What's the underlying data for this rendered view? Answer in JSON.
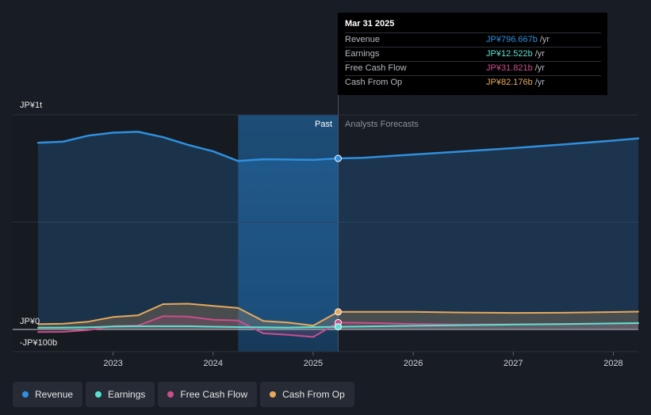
{
  "chart_data": {
    "type": "line",
    "y_axis_labels": {
      "top": "JP¥1t",
      "zero": "JP¥0",
      "bottom": "-JP¥100b"
    },
    "ylim": [
      -100,
      1000
    ],
    "x_ticks": [
      "2023",
      "2024",
      "2025",
      "2026",
      "2027",
      "2028"
    ],
    "xlim": [
      2022.25,
      2028.25
    ],
    "divider_x": 2025.25,
    "past_shade_start": 2024.25,
    "region_labels": {
      "past": "Past",
      "forecast": "Analysts Forecasts"
    },
    "series": [
      {
        "name": "Revenue",
        "color": "#2f8fde",
        "x": [
          2022.25,
          2022.5,
          2022.75,
          2023.0,
          2023.25,
          2023.5,
          2023.75,
          2024.0,
          2024.25,
          2024.5,
          2024.75,
          2025.0,
          2025.25,
          2025.5,
          2026.0,
          2026.5,
          2027.0,
          2027.5,
          2028.0,
          2028.25
        ],
        "y": [
          870,
          875,
          903,
          917,
          921,
          896,
          860,
          830,
          785,
          793,
          792,
          790,
          797,
          800,
          815,
          830,
          845,
          862,
          880,
          890
        ]
      },
      {
        "name": "Earnings",
        "color": "#5ce0d0",
        "x": [
          2022.25,
          2022.5,
          2022.75,
          2023.0,
          2023.25,
          2023.5,
          2023.75,
          2024.0,
          2024.25,
          2024.5,
          2024.75,
          2025.0,
          2025.25,
          2025.5,
          2026.0,
          2026.5,
          2027.0,
          2027.5,
          2028.0,
          2028.25
        ],
        "y": [
          8,
          9,
          10,
          14,
          15,
          15,
          15,
          13,
          11,
          10,
          9,
          11,
          12.5,
          14,
          17,
          20,
          23,
          25,
          28,
          30
        ]
      },
      {
        "name": "Free Cash Flow",
        "color": "#c94f8d",
        "x": [
          2022.25,
          2022.5,
          2022.75,
          2023.0,
          2023.25,
          2023.5,
          2023.75,
          2024.0,
          2024.25,
          2024.5,
          2024.75,
          2025.0,
          2025.25,
          2025.5,
          2026.0,
          2026.5,
          2027.0,
          2027.5,
          2028.0,
          2028.25
        ],
        "y": [
          -12,
          -11,
          -3,
          16,
          18,
          62,
          60,
          45,
          42,
          -18,
          -25,
          -35,
          32,
          31,
          26,
          23,
          24,
          26,
          28,
          28
        ]
      },
      {
        "name": "Cash From Op",
        "color": "#e6a95c",
        "x": [
          2022.25,
          2022.5,
          2022.75,
          2023.0,
          2023.25,
          2023.5,
          2023.75,
          2024.0,
          2024.25,
          2024.5,
          2024.75,
          2025.0,
          2025.25,
          2025.5,
          2026.0,
          2026.5,
          2027.0,
          2027.5,
          2028.0,
          2028.25
        ],
        "y": [
          25,
          27,
          36,
          58,
          66,
          118,
          120,
          110,
          100,
          40,
          32,
          18,
          82,
          82,
          82,
          79,
          77,
          78,
          81,
          83
        ]
      }
    ],
    "tooltip": {
      "date": "Mar 31 2025",
      "rows": [
        {
          "name": "Revenue",
          "value": "JP¥796.667b",
          "unit": "/yr",
          "color": "#2f8fde"
        },
        {
          "name": "Earnings",
          "value": "JP¥12.522b",
          "unit": "/yr",
          "color": "#5ce0d0"
        },
        {
          "name": "Free Cash Flow",
          "value": "JP¥31.821b",
          "unit": "/yr",
          "color": "#c94f8d"
        },
        {
          "name": "Cash From Op",
          "value": "JP¥82.176b",
          "unit": "/yr",
          "color": "#e6a95c"
        }
      ]
    },
    "legend": [
      {
        "label": "Revenue",
        "color": "#2f8fde"
      },
      {
        "label": "Earnings",
        "color": "#5ce0d0"
      },
      {
        "label": "Free Cash Flow",
        "color": "#c94f8d"
      },
      {
        "label": "Cash From Op",
        "color": "#e6a95c"
      }
    ]
  }
}
